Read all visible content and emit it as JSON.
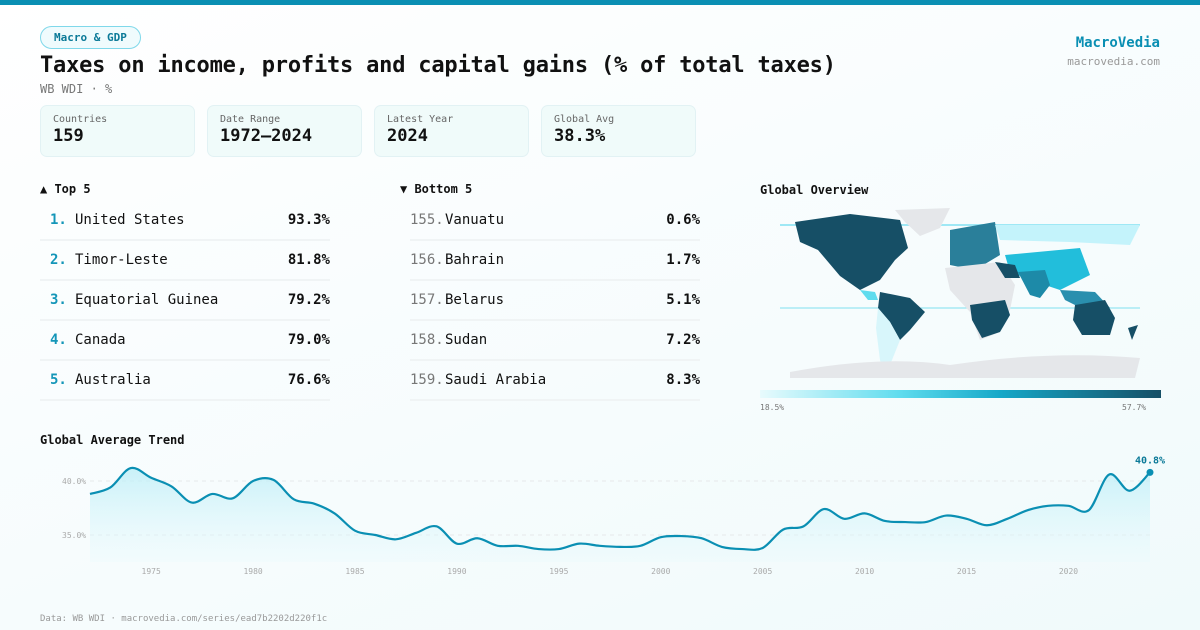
{
  "header": {
    "category": "Macro & GDP",
    "title": "Taxes on income, profits and capital gains (% of total taxes)",
    "subtitle": "WB WDI · %",
    "brand": "MacroVedia",
    "brand_url": "macrovedia.com"
  },
  "stats": [
    {
      "label": "Countries",
      "value": "159"
    },
    {
      "label": "Date Range",
      "value": "1972–2024"
    },
    {
      "label": "Latest Year",
      "value": "2024"
    },
    {
      "label": "Global Avg",
      "value": "38.3%"
    }
  ],
  "top": {
    "title": "▲ Top 5",
    "items": [
      {
        "rank": "1.",
        "name": "United States",
        "value": "93.3%"
      },
      {
        "rank": "2.",
        "name": "Timor-Leste",
        "value": "81.8%"
      },
      {
        "rank": "3.",
        "name": "Equatorial Guinea",
        "value": "79.2%"
      },
      {
        "rank": "4.",
        "name": "Canada",
        "value": "79.0%"
      },
      {
        "rank": "5.",
        "name": "Australia",
        "value": "76.6%"
      }
    ]
  },
  "bottom": {
    "title": "▼ Bottom 5",
    "items": [
      {
        "rank": "155.",
        "name": "Vanuatu",
        "value": "0.6%"
      },
      {
        "rank": "156.",
        "name": "Bahrain",
        "value": "1.7%"
      },
      {
        "rank": "157.",
        "name": "Belarus",
        "value": "5.1%"
      },
      {
        "rank": "158.",
        "name": "Sudan",
        "value": "7.2%"
      },
      {
        "rank": "159.",
        "name": "Saudi Arabia",
        "value": "8.3%"
      }
    ]
  },
  "map": {
    "title": "Global Overview",
    "legend_min": "18.5%",
    "legend_max": "57.7%",
    "colors": {
      "low": "#e8fbfd",
      "mid": "#15a8c8",
      "high": "#164f66",
      "nodata": "#e5e7ea"
    }
  },
  "chart_data": {
    "type": "area",
    "title": "Global Average Trend",
    "x": [
      1972,
      1973,
      1974,
      1975,
      1976,
      1977,
      1978,
      1979,
      1980,
      1981,
      1982,
      1983,
      1984,
      1985,
      1986,
      1987,
      1988,
      1989,
      1990,
      1991,
      1992,
      1993,
      1994,
      1995,
      1996,
      1997,
      1998,
      1999,
      2000,
      2001,
      2002,
      2003,
      2004,
      2005,
      2006,
      2007,
      2008,
      2009,
      2010,
      2011,
      2012,
      2013,
      2014,
      2015,
      2016,
      2017,
      2018,
      2019,
      2020,
      2021,
      2022,
      2023,
      2024
    ],
    "y": [
      38.8,
      39.4,
      41.2,
      40.3,
      39.5,
      38.0,
      38.8,
      38.4,
      40.0,
      40.1,
      38.3,
      37.9,
      37.0,
      35.4,
      35.0,
      34.6,
      35.2,
      35.8,
      34.2,
      34.7,
      34.0,
      34.0,
      33.7,
      33.7,
      34.2,
      34.0,
      33.9,
      34.0,
      34.8,
      34.9,
      34.7,
      33.9,
      33.7,
      33.8,
      35.5,
      35.8,
      37.4,
      36.5,
      37.0,
      36.3,
      36.2,
      36.2,
      36.8,
      36.5,
      35.9,
      36.5,
      37.3,
      37.7,
      37.7,
      37.3,
      40.6,
      39.1,
      40.8
    ],
    "y_ticks": [
      "35.0%",
      "40.0%"
    ],
    "x_ticks": [
      "1975",
      "1980",
      "1985",
      "1990",
      "1995",
      "2000",
      "2005",
      "2010",
      "2015",
      "2020"
    ],
    "last_label": "40.8%",
    "grid": true,
    "color": "#0a8fb3"
  },
  "footer": "Data: WB WDI · macrovedia.com/series/ead7b2202d220f1c"
}
